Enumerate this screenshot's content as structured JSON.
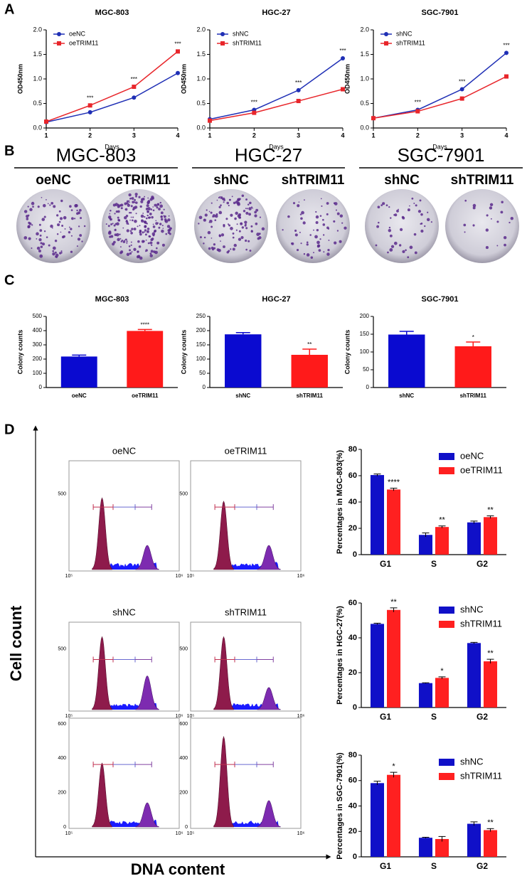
{
  "panel_labels": [
    "A",
    "B",
    "C",
    "D"
  ],
  "chart_data": [
    {
      "type": "line",
      "title": "MGC-803",
      "x": [
        1,
        2,
        3,
        4
      ],
      "xlim": [
        1,
        4
      ],
      "xticks": [
        1,
        2,
        3,
        4
      ],
      "ylim": [
        0,
        2
      ],
      "yticks": [
        {
          "value": 0,
          "label": "0.0"
        },
        {
          "value": 0.5,
          "label": "0.5"
        },
        {
          "value": 1,
          "label": "1.0"
        },
        {
          "value": 1.5,
          "label": "1.5"
        },
        {
          "value": 2,
          "label": "2.0"
        }
      ],
      "x_label": "Days",
      "y_label": "OD450nm",
      "legend": "upper left",
      "series": [
        {
          "name": "oeNC",
          "color": "#1f2fb5",
          "values": [
            0.12,
            0.32,
            0.62,
            1.12
          ]
        },
        {
          "name": "oeTRIM11",
          "color": "#e8262b",
          "values": [
            0.13,
            0.46,
            0.84,
            1.56
          ]
        }
      ],
      "annotations": [
        null,
        "***",
        "***",
        "***"
      ]
    },
    {
      "type": "line",
      "title": "HGC-27",
      "x": [
        1,
        2,
        3,
        4
      ],
      "xlim": [
        1,
        4
      ],
      "xticks": [
        1,
        2,
        3,
        4
      ],
      "ylim": [
        0,
        2
      ],
      "yticks": [
        {
          "value": 0,
          "label": "0.0"
        },
        {
          "value": 0.5,
          "label": "0.5"
        },
        {
          "value": 1,
          "label": "1.0"
        },
        {
          "value": 1.5,
          "label": "1.5"
        },
        {
          "value": 2,
          "label": "2.0"
        }
      ],
      "x_label": "Days",
      "y_label": "OD450nm",
      "legend": "upper left",
      "series": [
        {
          "name": "shNC",
          "color": "#1f2fb5",
          "values": [
            0.18,
            0.37,
            0.77,
            1.42
          ]
        },
        {
          "name": "shTRIM11",
          "color": "#e8262b",
          "values": [
            0.15,
            0.31,
            0.55,
            0.79
          ]
        }
      ],
      "annotations": [
        null,
        "***",
        "***",
        "***"
      ]
    },
    {
      "type": "line",
      "title": "SGC-7901",
      "x": [
        1,
        2,
        3,
        4
      ],
      "xlim": [
        1,
        4
      ],
      "xticks": [
        1,
        2,
        3,
        4
      ],
      "ylim": [
        0,
        2
      ],
      "yticks": [
        {
          "value": 0,
          "label": "0.0"
        },
        {
          "value": 0.5,
          "label": "0.5"
        },
        {
          "value": 1,
          "label": "1.0"
        },
        {
          "value": 1.5,
          "label": "1.5"
        },
        {
          "value": 2,
          "label": "2.0"
        }
      ],
      "x_label": "Days",
      "y_label": "OD450nm",
      "legend": "upper left",
      "series": [
        {
          "name": "shNC",
          "color": "#1f2fb5",
          "values": [
            0.2,
            0.37,
            0.79,
            1.53
          ]
        },
        {
          "name": "shTRIM11",
          "color": "#e8262b",
          "values": [
            0.2,
            0.34,
            0.6,
            1.05
          ]
        }
      ],
      "annotations": [
        null,
        "***",
        "***",
        "***"
      ]
    },
    {
      "type": "bar",
      "title": "MGC-803",
      "categories": [
        "oeNC",
        "oeTRIM11"
      ],
      "values": [
        218,
        398
      ],
      "errors": [
        10,
        10
      ],
      "colors": [
        "#0a0ad0",
        "#ff1a1a"
      ],
      "ylim": [
        0,
        500
      ],
      "yticks": [
        0,
        100,
        200,
        300,
        400,
        500
      ],
      "y_label": "Colony counts",
      "annotations": [
        null,
        "****"
      ]
    },
    {
      "type": "bar",
      "title": "HGC-27",
      "categories": [
        "shNC",
        "shTRIM11"
      ],
      "values": [
        187,
        115
      ],
      "errors": [
        6,
        20
      ],
      "colors": [
        "#0a0ad0",
        "#ff1a1a"
      ],
      "ylim": [
        0,
        250
      ],
      "yticks": [
        0,
        50,
        100,
        150,
        200,
        250
      ],
      "y_label": "Colony counts",
      "annotations": [
        null,
        "**"
      ]
    },
    {
      "type": "bar",
      "title": "SGC-7901",
      "categories": [
        "shNC",
        "shTRIM11"
      ],
      "values": [
        149,
        116
      ],
      "errors": [
        9,
        12
      ],
      "colors": [
        "#0a0ad0",
        "#ff1a1a"
      ],
      "ylim": [
        0,
        200
      ],
      "yticks": [
        0,
        50,
        100,
        150,
        200
      ],
      "y_label": "Colony counts",
      "annotations": [
        null,
        "*"
      ]
    },
    {
      "type": "grouped_bar",
      "categories": [
        "G1",
        "S",
        "G2"
      ],
      "ylim": [
        0,
        80
      ],
      "yticks": [
        0,
        20,
        40,
        60,
        80
      ],
      "y_label": "Percentages in MGC-803(%)",
      "legend": "upper right",
      "series": [
        {
          "name": "oeNC",
          "color": "#1010c8",
          "values": [
            60.5,
            15,
            24.5
          ],
          "errors": [
            0.8,
            1.5,
            1
          ]
        },
        {
          "name": "oeTRIM11",
          "color": "#ff2020",
          "values": [
            49.5,
            21,
            28.5
          ],
          "errors": [
            1,
            0.8,
            1
          ]
        }
      ],
      "annotations": [
        "****",
        "**",
        "**"
      ]
    },
    {
      "type": "grouped_bar",
      "categories": [
        "G1",
        "S",
        "G2"
      ],
      "ylim": [
        0,
        60
      ],
      "yticks": [
        0,
        20,
        40,
        60
      ],
      "y_label": "Percentages in HGC-27(%)",
      "legend": "upper right",
      "series": [
        {
          "name": "shNC",
          "color": "#1010c8",
          "values": [
            48,
            14,
            37
          ],
          "errors": [
            0.4,
            0.2,
            0.4
          ]
        },
        {
          "name": "shTRIM11",
          "color": "#ff2020",
          "values": [
            56,
            17,
            26.5
          ],
          "errors": [
            1.2,
            0.6,
            1.2
          ]
        }
      ],
      "annotations": [
        "**",
        "*",
        "**"
      ]
    },
    {
      "type": "grouped_bar",
      "categories": [
        "G1",
        "S",
        "G2"
      ],
      "ylim": [
        0,
        80
      ],
      "yticks": [
        0,
        20,
        40,
        60,
        80
      ],
      "y_label": "Percentages in SGC-7901(%)",
      "legend": "upper right",
      "series": [
        {
          "name": "shNC",
          "color": "#1010c8",
          "values": [
            58,
            15,
            26
          ],
          "errors": [
            1.5,
            0.4,
            1.5
          ]
        },
        {
          "name": "shTRIM11",
          "color": "#ff2020",
          "values": [
            64.5,
            14,
            21
          ],
          "errors": [
            2,
            2,
            1.2
          ]
        }
      ],
      "annotations": [
        "*",
        null,
        "**"
      ]
    }
  ],
  "colony_plates": [
    {
      "title": "MGC-803",
      "groups": [
        "oeNC",
        "oeTRIM11"
      ]
    },
    {
      "title": "HGC-27",
      "groups": [
        "shNC",
        "shTRIM11"
      ]
    },
    {
      "title": "SGC-7901",
      "groups": [
        "shNC",
        "shTRIM11"
      ]
    }
  ],
  "flow_cytometry": {
    "y_label": "Cell count",
    "x_label": "DNA content",
    "panels": [
      {
        "title": "oeNC",
        "y_tick_labels": [
          "500"
        ],
        "x_tick_labels": [
          "10⁵",
          "10⁶"
        ]
      },
      {
        "title": "oeTRIM11",
        "y_tick_labels": [
          "500"
        ],
        "x_tick_labels": [
          "10⁵",
          "10⁶"
        ]
      },
      {
        "title": "shNC",
        "y_tick_labels": [
          "500"
        ],
        "x_tick_labels": [
          "10⁵",
          "10⁶"
        ]
      },
      {
        "title": "shTRIM11",
        "y_tick_labels": [
          "500"
        ],
        "x_tick_labels": [
          "10⁵",
          "10⁶"
        ]
      },
      {
        "y_tick_labels": [
          "600",
          "400",
          "200",
          "0"
        ],
        "x_tick_labels": [
          "10⁵",
          "10⁶"
        ]
      },
      {
        "y_tick_labels": [
          "600",
          "400",
          "200",
          "0"
        ],
        "x_tick_labels": [
          "10⁵",
          "10⁶"
        ]
      }
    ]
  }
}
